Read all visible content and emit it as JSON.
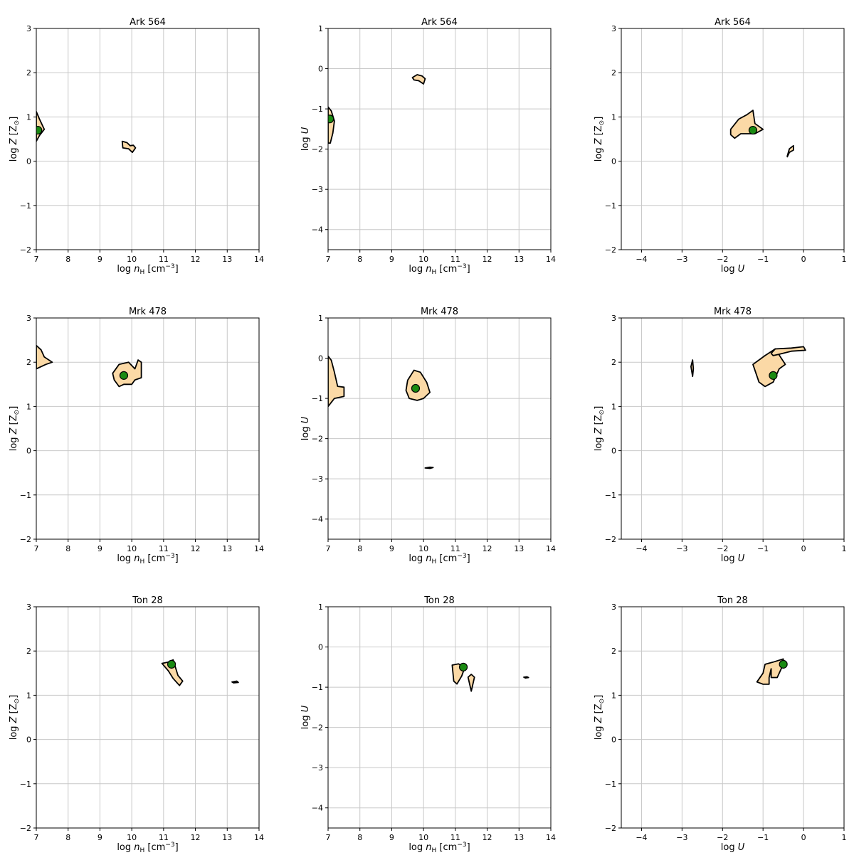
{
  "chart_data": [
    {
      "type": "contour",
      "title": "Ark 564",
      "xlabel": "log n_H [cm^-3]",
      "ylabel": "log Z [Z_sun]",
      "xlim": [
        7,
        14
      ],
      "ylim": [
        -2,
        3
      ],
      "xticks": [
        "7",
        "8",
        "9",
        "10",
        "11",
        "12",
        "13",
        "14"
      ],
      "yticks": [
        "−2",
        "−1",
        "0",
        "1",
        "2",
        "3"
      ],
      "grid": true,
      "best_fit": [
        7.05,
        0.7
      ],
      "regions": [
        [
          [
            7.0,
            1.12
          ],
          [
            7.1,
            0.95
          ],
          [
            7.25,
            0.72
          ],
          [
            7.1,
            0.58
          ],
          [
            7.0,
            0.45
          ]
        ],
        [
          [
            9.7,
            0.45
          ],
          [
            9.85,
            0.42
          ],
          [
            9.95,
            0.35
          ],
          [
            10.05,
            0.36
          ],
          [
            10.12,
            0.3
          ],
          [
            10.02,
            0.2
          ],
          [
            9.9,
            0.28
          ],
          [
            9.72,
            0.3
          ]
        ]
      ]
    },
    {
      "type": "contour",
      "title": "Ark 564",
      "xlabel": "log n_H [cm^-3]",
      "ylabel": "log U",
      "xlim": [
        7,
        14
      ],
      "ylim": [
        -4.5,
        1
      ],
      "xticks": [
        "7",
        "8",
        "9",
        "10",
        "11",
        "12",
        "13",
        "14"
      ],
      "yticks": [
        "−4",
        "−3",
        "−2",
        "−1",
        "0",
        "1"
      ],
      "grid": true,
      "best_fit": [
        7.05,
        -1.25
      ],
      "regions": [
        [
          [
            7.0,
            -0.95
          ],
          [
            7.1,
            -1.05
          ],
          [
            7.2,
            -1.3
          ],
          [
            7.15,
            -1.6
          ],
          [
            7.07,
            -1.85
          ],
          [
            7.0,
            -1.85
          ]
        ],
        [
          [
            9.65,
            -0.22
          ],
          [
            9.8,
            -0.15
          ],
          [
            9.95,
            -0.18
          ],
          [
            10.05,
            -0.25
          ],
          [
            10.0,
            -0.38
          ],
          [
            9.85,
            -0.3
          ],
          [
            9.7,
            -0.28
          ]
        ]
      ]
    },
    {
      "type": "contour",
      "title": "Ark 564",
      "xlabel": "log U",
      "ylabel": "log Z [Z_sun]",
      "xlim": [
        -4.5,
        1
      ],
      "ylim": [
        -2,
        3
      ],
      "xticks": [
        "−4",
        "−3",
        "−2",
        "−1",
        "0",
        "1"
      ],
      "yticks": [
        "−2",
        "−1",
        "0",
        "1",
        "2",
        "3"
      ],
      "grid": true,
      "best_fit": [
        -1.25,
        0.7
      ],
      "regions": [
        [
          [
            -1.8,
            0.72
          ],
          [
            -1.6,
            0.95
          ],
          [
            -1.4,
            1.05
          ],
          [
            -1.25,
            1.15
          ],
          [
            -1.2,
            0.85
          ],
          [
            -1.0,
            0.72
          ],
          [
            -1.2,
            0.62
          ],
          [
            -1.55,
            0.62
          ],
          [
            -1.7,
            0.52
          ],
          [
            -1.8,
            0.6
          ]
        ],
        [
          [
            -0.4,
            0.12
          ],
          [
            -0.35,
            0.28
          ],
          [
            -0.25,
            0.35
          ],
          [
            -0.25,
            0.25
          ],
          [
            -0.35,
            0.2
          ],
          [
            -0.4,
            0.1
          ]
        ]
      ]
    },
    {
      "type": "contour",
      "title": "Mrk 478",
      "xlabel": "log n_H [cm^-3]",
      "ylabel": "log Z [Z_sun]",
      "xlim": [
        7,
        14
      ],
      "ylim": [
        -2,
        3
      ],
      "xticks": [
        "7",
        "8",
        "9",
        "10",
        "11",
        "12",
        "13",
        "14"
      ],
      "yticks": [
        "−2",
        "−1",
        "0",
        "1",
        "2",
        "3"
      ],
      "grid": true,
      "best_fit": [
        9.75,
        1.7
      ],
      "regions": [
        [
          [
            7.0,
            2.38
          ],
          [
            7.15,
            2.28
          ],
          [
            7.25,
            2.12
          ],
          [
            7.5,
            2.0
          ],
          [
            7.3,
            1.95
          ],
          [
            7.0,
            1.85
          ]
        ],
        [
          [
            9.4,
            1.75
          ],
          [
            9.6,
            1.95
          ],
          [
            9.9,
            2.0
          ],
          [
            10.1,
            1.85
          ],
          [
            10.2,
            2.05
          ],
          [
            10.3,
            2.0
          ],
          [
            10.3,
            1.65
          ],
          [
            10.1,
            1.6
          ],
          [
            10.0,
            1.5
          ],
          [
            9.75,
            1.5
          ],
          [
            9.6,
            1.45
          ],
          [
            9.45,
            1.6
          ]
        ]
      ]
    },
    {
      "type": "contour",
      "title": "Mrk 478",
      "xlabel": "log n_H [cm^-3]",
      "ylabel": "log U",
      "xlim": [
        7,
        14
      ],
      "ylim": [
        -4.5,
        1
      ],
      "xticks": [
        "7",
        "8",
        "9",
        "10",
        "11",
        "12",
        "13",
        "14"
      ],
      "yticks": [
        "−4",
        "−3",
        "−2",
        "−1",
        "0",
        "1"
      ],
      "grid": true,
      "best_fit": [
        9.75,
        -0.75
      ],
      "regions": [
        [
          [
            7.0,
            0.05
          ],
          [
            7.1,
            -0.05
          ],
          [
            7.2,
            -0.35
          ],
          [
            7.3,
            -0.7
          ],
          [
            7.5,
            -0.72
          ],
          [
            7.5,
            -0.95
          ],
          [
            7.2,
            -1.0
          ],
          [
            7.0,
            -1.2
          ]
        ],
        [
          [
            9.5,
            -0.55
          ],
          [
            9.7,
            -0.3
          ],
          [
            9.9,
            -0.35
          ],
          [
            10.1,
            -0.6
          ],
          [
            10.2,
            -0.85
          ],
          [
            10.0,
            -1.0
          ],
          [
            9.8,
            -1.05
          ],
          [
            9.55,
            -1.0
          ],
          [
            9.45,
            -0.8
          ]
        ],
        [
          [
            10.05,
            -2.73
          ],
          [
            10.2,
            -2.71
          ],
          [
            10.3,
            -2.72
          ],
          [
            10.2,
            -2.74
          ]
        ]
      ]
    },
    {
      "type": "contour",
      "title": "Mrk 478",
      "xlabel": "log U",
      "ylabel": "log Z [Z_sun]",
      "xlim": [
        -4.5,
        1
      ],
      "ylim": [
        -2,
        3
      ],
      "xticks": [
        "−4",
        "−3",
        "−2",
        "−1",
        "0",
        "1"
      ],
      "yticks": [
        "−2",
        "−1",
        "0",
        "1",
        "2",
        "3"
      ],
      "grid": true,
      "best_fit": [
        -0.75,
        1.7
      ],
      "regions": [
        [
          [
            -2.78,
            1.9
          ],
          [
            -2.74,
            2.05
          ],
          [
            -2.72,
            1.85
          ],
          [
            -2.74,
            1.68
          ]
        ],
        [
          [
            -1.25,
            1.95
          ],
          [
            -0.95,
            2.15
          ],
          [
            -0.7,
            2.3
          ],
          [
            -0.45,
            1.95
          ],
          [
            -0.6,
            1.85
          ],
          [
            -0.75,
            1.55
          ],
          [
            -0.95,
            1.45
          ],
          [
            -1.1,
            1.55
          ]
        ],
        [
          [
            -0.8,
            2.2
          ],
          [
            -0.7,
            2.3
          ],
          [
            -0.3,
            2.32
          ],
          [
            0.0,
            2.35
          ],
          [
            0.05,
            2.27
          ],
          [
            -0.3,
            2.25
          ],
          [
            -0.6,
            2.18
          ],
          [
            -0.75,
            2.15
          ]
        ]
      ]
    },
    {
      "type": "contour",
      "title": "Ton 28",
      "xlabel": "log n_H [cm^-3]",
      "ylabel": "log Z [Z_sun]",
      "xlim": [
        7,
        14
      ],
      "ylim": [
        -2,
        3
      ],
      "xticks": [
        "7",
        "8",
        "9",
        "10",
        "11",
        "12",
        "13",
        "14"
      ],
      "yticks": [
        "−2",
        "−1",
        "0",
        "1",
        "2",
        "3"
      ],
      "grid": true,
      "best_fit": [
        11.25,
        1.7
      ],
      "regions": [
        [
          [
            10.95,
            1.72
          ],
          [
            11.15,
            1.75
          ],
          [
            11.3,
            1.8
          ],
          [
            11.45,
            1.45
          ],
          [
            11.6,
            1.32
          ],
          [
            11.5,
            1.22
          ],
          [
            11.3,
            1.38
          ],
          [
            11.15,
            1.55
          ]
        ],
        [
          [
            13.15,
            1.3
          ],
          [
            13.3,
            1.32
          ],
          [
            13.35,
            1.29
          ],
          [
            13.2,
            1.28
          ]
        ]
      ]
    },
    {
      "type": "contour",
      "title": "Ton 28",
      "xlabel": "log n_H [cm^-3]",
      "ylabel": "log U",
      "xlim": [
        7,
        14
      ],
      "ylim": [
        -4.5,
        1
      ],
      "xticks": [
        "7",
        "8",
        "9",
        "10",
        "11",
        "12",
        "13",
        "14"
      ],
      "yticks": [
        "−4",
        "−3",
        "−2",
        "−1",
        "0",
        "1"
      ],
      "grid": true,
      "best_fit": [
        11.25,
        -0.5
      ],
      "regions": [
        [
          [
            10.9,
            -0.45
          ],
          [
            11.1,
            -0.42
          ],
          [
            11.3,
            -0.5
          ],
          [
            11.2,
            -0.72
          ],
          [
            11.05,
            -0.92
          ],
          [
            10.95,
            -0.85
          ]
        ],
        [
          [
            11.4,
            -0.75
          ],
          [
            11.5,
            -0.68
          ],
          [
            11.6,
            -0.75
          ],
          [
            11.5,
            -1.1
          ]
        ],
        [
          [
            13.15,
            -0.75
          ],
          [
            13.25,
            -0.74
          ],
          [
            13.3,
            -0.76
          ],
          [
            13.2,
            -0.77
          ]
        ]
      ]
    },
    {
      "type": "contour",
      "title": "Ton 28",
      "xlabel": "log U",
      "ylabel": "log Z [Z_sun]",
      "xlim": [
        -4.5,
        1
      ],
      "ylim": [
        -2,
        3
      ],
      "xticks": [
        "−4",
        "−3",
        "−2",
        "−1",
        "0",
        "1"
      ],
      "yticks": [
        "−2",
        "−1",
        "0",
        "1",
        "2",
        "3"
      ],
      "grid": true,
      "best_fit": [
        -0.5,
        1.7
      ],
      "regions": [
        [
          [
            -1.15,
            1.3
          ],
          [
            -1.0,
            1.5
          ],
          [
            -0.95,
            1.7
          ],
          [
            -0.75,
            1.75
          ],
          [
            -0.5,
            1.82
          ],
          [
            -0.5,
            1.7
          ],
          [
            -0.65,
            1.4
          ],
          [
            -0.8,
            1.4
          ],
          [
            -0.8,
            1.6
          ],
          [
            -0.85,
            1.4
          ],
          [
            -0.85,
            1.25
          ],
          [
            -1.0,
            1.25
          ]
        ]
      ]
    }
  ]
}
